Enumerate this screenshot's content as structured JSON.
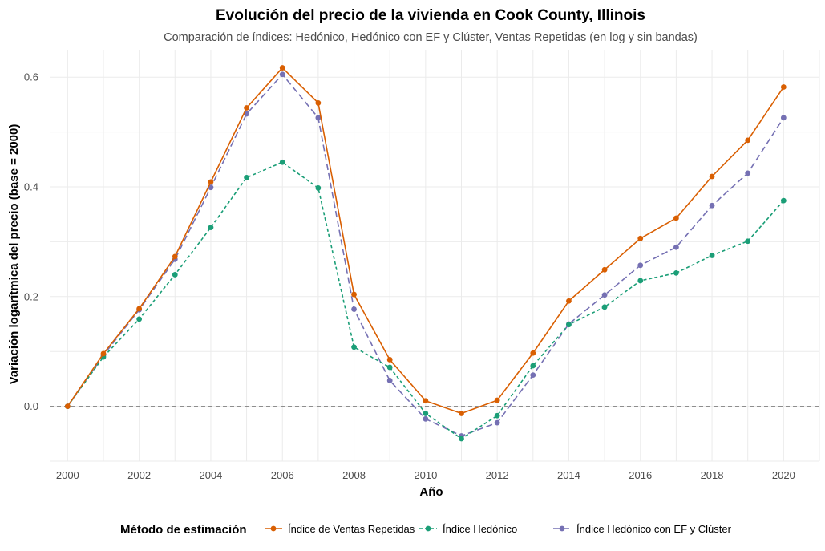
{
  "chart_data": {
    "type": "line",
    "title": "Evolución del precio de la vivienda en Cook County, Illinois",
    "subtitle": "Comparación de índices: Hedónico, Hedónico con EF y Clúster, Ventas Repetidas (en log y sin bandas)",
    "xlabel": "Año",
    "ylabel": "Variación logarítmica del precio (base = 2000)",
    "x": [
      2000,
      2001,
      2002,
      2003,
      2004,
      2005,
      2006,
      2007,
      2008,
      2009,
      2010,
      2011,
      2012,
      2013,
      2014,
      2015,
      2016,
      2017,
      2018,
      2019,
      2020
    ],
    "xlim": [
      1999.5,
      2021
    ],
    "ylim": [
      -0.1,
      0.65
    ],
    "x_ticks": [
      "2000",
      "2002",
      "2004",
      "2006",
      "2008",
      "2010",
      "2012",
      "2014",
      "2016",
      "2018",
      "2020"
    ],
    "y_ticks": [
      "0.0",
      "0.2",
      "0.4",
      "0.6"
    ],
    "reference_line": 0,
    "grid": true,
    "legend": {
      "title": "Método de estimación",
      "position": "bottom"
    },
    "series": [
      {
        "name": "Índice de Ventas Repetidas",
        "color": "#d95f02",
        "dash": "solid",
        "values": [
          0.0,
          0.096,
          0.178,
          0.273,
          0.409,
          0.544,
          0.617,
          0.553,
          0.204,
          0.085,
          0.01,
          -0.013,
          0.011,
          0.097,
          0.192,
          0.249,
          0.306,
          0.343,
          0.419,
          0.485,
          0.582
        ]
      },
      {
        "name": "Índice Hedónico",
        "color": "#1b9e77",
        "dash": "dotted",
        "values": [
          0.0,
          0.09,
          0.159,
          0.24,
          0.326,
          0.417,
          0.445,
          0.398,
          0.108,
          0.071,
          -0.013,
          -0.059,
          -0.017,
          0.074,
          0.149,
          0.181,
          0.229,
          0.243,
          0.275,
          0.301,
          0.375
        ]
      },
      {
        "name": "Índice Hedónico con EF y Clúster",
        "color": "#7570b3",
        "dash": "dashed",
        "values": [
          0.0,
          0.093,
          0.176,
          0.268,
          0.399,
          0.533,
          0.605,
          0.526,
          0.177,
          0.047,
          -0.023,
          -0.054,
          -0.03,
          0.057,
          0.15,
          0.203,
          0.257,
          0.29,
          0.366,
          0.425,
          0.526
        ]
      }
    ]
  }
}
